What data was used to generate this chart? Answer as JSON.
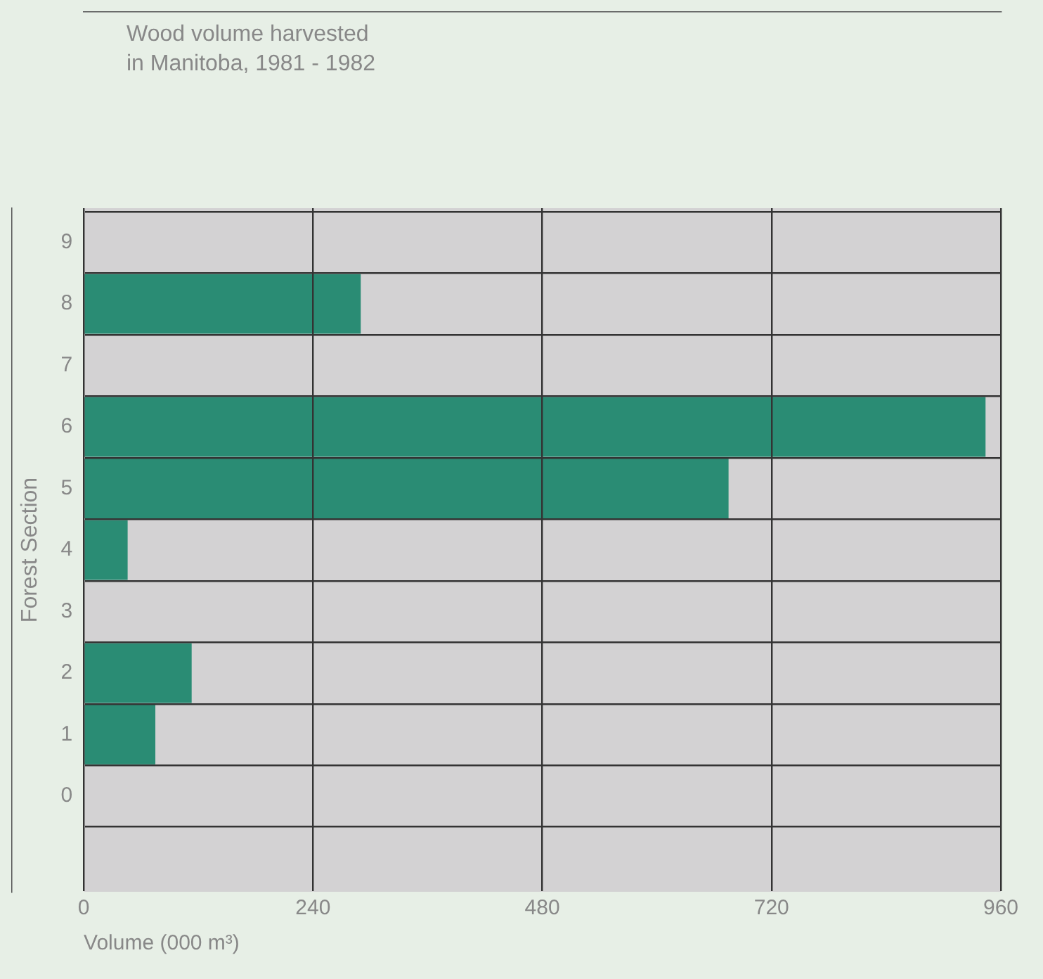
{
  "chart_data": {
    "type": "bar",
    "orientation": "horizontal",
    "title": "Wood volume harvested in Manitoba, 1981 - 1982",
    "xlabel": "Volume (000 m³)",
    "ylabel": "Forest Section",
    "categories": [
      "9",
      "8",
      "7",
      "6",
      "5",
      "4",
      "3",
      "2",
      "1",
      "0"
    ],
    "values": [
      null,
      290,
      null,
      944,
      675,
      46,
      null,
      113,
      75,
      null
    ],
    "color": "#2a8c74",
    "xlim": [
      0,
      960
    ],
    "xticks": [
      0,
      240,
      480,
      720,
      960
    ],
    "grid": true,
    "legend": false
  }
}
